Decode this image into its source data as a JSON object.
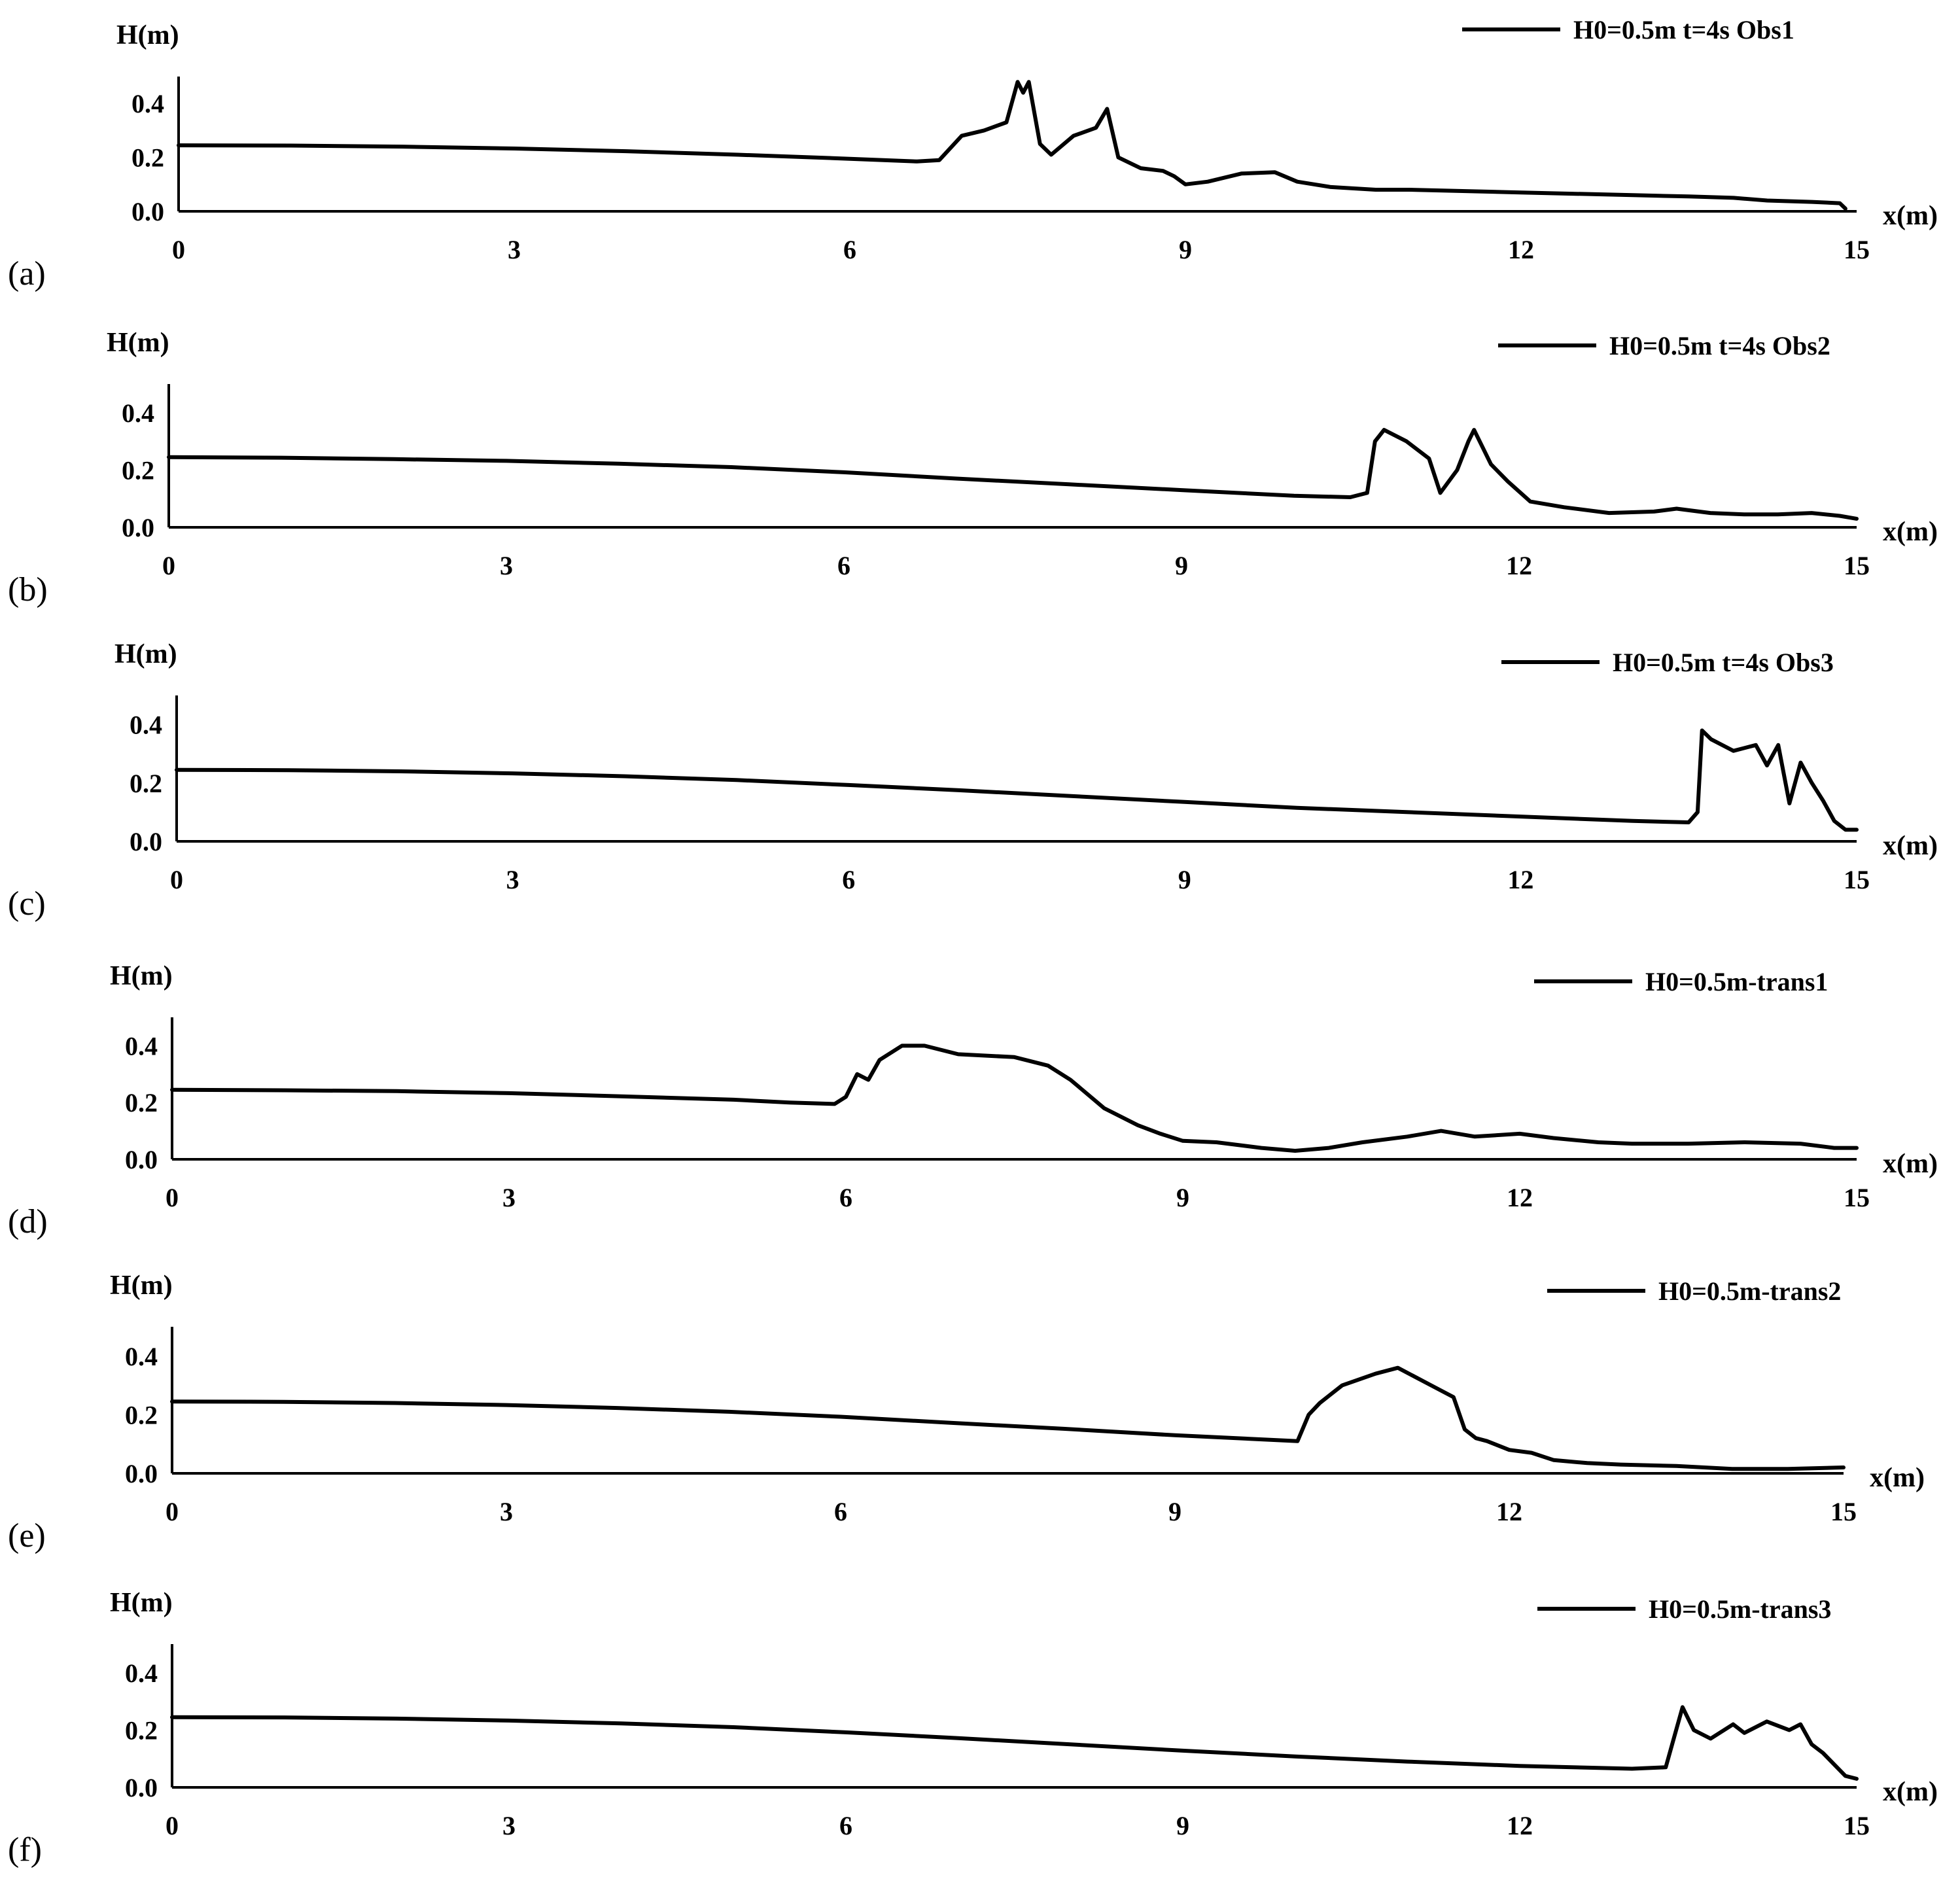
{
  "chart_data": [
    {
      "type": "line",
      "panel_label": "(a)",
      "ylabel": "H(m)",
      "xlabel": "x(m)",
      "xlim": [
        0,
        15
      ],
      "ylim": [
        0,
        0.5
      ],
      "xticks": [
        "0",
        "3",
        "6",
        "9",
        "12",
        "15"
      ],
      "yticks": [
        "0.0",
        "0.2",
        "0.4"
      ],
      "legend": "top-right",
      "series": [
        {
          "name": "H0=0.5m t=4s Obs1",
          "x": [
            0,
            1,
            2,
            3,
            4,
            5,
            6,
            6.6,
            6.8,
            7.0,
            7.2,
            7.4,
            7.5,
            7.55,
            7.6,
            7.7,
            7.8,
            8.0,
            8.2,
            8.3,
            8.4,
            8.6,
            8.8,
            8.9,
            9.0,
            9.2,
            9.5,
            9.8,
            10.0,
            10.3,
            10.7,
            11,
            12,
            13,
            13.5,
            13.9,
            14.2,
            14.6,
            14.85,
            14.9
          ],
          "y": [
            0.245,
            0.244,
            0.24,
            0.233,
            0.223,
            0.21,
            0.195,
            0.185,
            0.19,
            0.28,
            0.3,
            0.33,
            0.48,
            0.44,
            0.48,
            0.25,
            0.21,
            0.28,
            0.31,
            0.38,
            0.2,
            0.16,
            0.15,
            0.13,
            0.1,
            0.11,
            0.14,
            0.145,
            0.11,
            0.09,
            0.08,
            0.08,
            0.07,
            0.06,
            0.055,
            0.05,
            0.04,
            0.035,
            0.03,
            0.01
          ]
        }
      ]
    },
    {
      "type": "line",
      "panel_label": "(b)",
      "ylabel": "H(m)",
      "xlabel": "x(m)",
      "xlim": [
        0,
        15
      ],
      "ylim": [
        0,
        0.5
      ],
      "xticks": [
        "0",
        "3",
        "6",
        "9",
        "12",
        "15"
      ],
      "yticks": [
        "0.0",
        "0.2",
        "0.4"
      ],
      "legend": "top-right",
      "series": [
        {
          "name": "H0=0.5m t=4s Obs2",
          "x": [
            0,
            1,
            2,
            3,
            4,
            5,
            6,
            7,
            8,
            9,
            10,
            10.5,
            10.65,
            10.72,
            10.8,
            11.0,
            11.2,
            11.3,
            11.45,
            11.55,
            11.6,
            11.75,
            11.9,
            12.1,
            12.4,
            12.8,
            13.2,
            13.4,
            13.7,
            14.0,
            14.3,
            14.6,
            14.85,
            15
          ],
          "y": [
            0.245,
            0.243,
            0.238,
            0.232,
            0.222,
            0.21,
            0.192,
            0.17,
            0.15,
            0.13,
            0.11,
            0.105,
            0.12,
            0.3,
            0.34,
            0.3,
            0.24,
            0.12,
            0.2,
            0.3,
            0.34,
            0.22,
            0.16,
            0.09,
            0.07,
            0.05,
            0.055,
            0.065,
            0.05,
            0.045,
            0.045,
            0.05,
            0.04,
            0.03
          ]
        }
      ]
    },
    {
      "type": "line",
      "panel_label": "(c)",
      "ylabel": "H(m)",
      "xlabel": "x(m)",
      "xlim": [
        0,
        15
      ],
      "ylim": [
        0,
        0.5
      ],
      "xticks": [
        "0",
        "3",
        "6",
        "9",
        "12",
        "15"
      ],
      "yticks": [
        "0.0",
        "0.2",
        "0.4"
      ],
      "legend": "top-right",
      "series": [
        {
          "name": "H0=0.5m t=4s Obs3",
          "x": [
            0,
            1,
            2,
            3,
            4,
            5,
            6,
            7,
            8,
            9,
            10,
            11,
            12,
            13,
            13.5,
            13.58,
            13.62,
            13.7,
            13.9,
            14.1,
            14.2,
            14.3,
            14.4,
            14.5,
            14.6,
            14.7,
            14.8,
            14.9,
            15
          ],
          "y": [
            0.245,
            0.244,
            0.24,
            0.233,
            0.223,
            0.21,
            0.193,
            0.175,
            0.155,
            0.135,
            0.115,
            0.1,
            0.085,
            0.07,
            0.065,
            0.1,
            0.38,
            0.35,
            0.31,
            0.33,
            0.26,
            0.33,
            0.13,
            0.27,
            0.2,
            0.14,
            0.07,
            0.04,
            0.04
          ]
        }
      ]
    },
    {
      "type": "line",
      "panel_label": "(d)",
      "ylabel": "H(m)",
      "xlabel": "x(m)",
      "xlim": [
        0,
        15
      ],
      "ylim": [
        0,
        0.5
      ],
      "xticks": [
        "0",
        "3",
        "6",
        "9",
        "12",
        "15"
      ],
      "yticks": [
        "0.0",
        "0.2",
        "0.4"
      ],
      "legend": "top-right",
      "series": [
        {
          "name": "H0=0.5m-trans1",
          "x": [
            0,
            1,
            2,
            3,
            4,
            5,
            5.5,
            5.9,
            6.0,
            6.1,
            6.2,
            6.3,
            6.5,
            6.7,
            7.0,
            7.5,
            7.8,
            8.0,
            8.3,
            8.6,
            8.8,
            9.0,
            9.3,
            9.7,
            10.0,
            10.3,
            10.6,
            11.0,
            11.3,
            11.6,
            12.0,
            12.3,
            12.7,
            13.0,
            13.5,
            14.0,
            14.5,
            14.8,
            15
          ],
          "y": [
            0.245,
            0.243,
            0.24,
            0.233,
            0.222,
            0.21,
            0.2,
            0.195,
            0.22,
            0.3,
            0.28,
            0.35,
            0.4,
            0.4,
            0.37,
            0.36,
            0.33,
            0.28,
            0.18,
            0.12,
            0.09,
            0.065,
            0.06,
            0.04,
            0.03,
            0.04,
            0.06,
            0.08,
            0.1,
            0.08,
            0.09,
            0.075,
            0.06,
            0.055,
            0.055,
            0.06,
            0.055,
            0.04,
            0.04
          ]
        }
      ]
    },
    {
      "type": "line",
      "panel_label": "(e)",
      "ylabel": "H(m)",
      "xlabel": "x(m)",
      "xlim": [
        0,
        15
      ],
      "ylim": [
        0,
        0.5
      ],
      "xticks": [
        "0",
        "3",
        "6",
        "9",
        "12",
        "15"
      ],
      "yticks": [
        "0.0",
        "0.2",
        "0.4"
      ],
      "legend": "top-right",
      "series": [
        {
          "name": "H0=0.5m-trans2",
          "x": [
            0,
            1,
            2,
            3,
            4,
            5,
            6,
            7,
            8,
            9,
            10.1,
            10.2,
            10.3,
            10.5,
            10.8,
            11.0,
            11.3,
            11.5,
            11.6,
            11.7,
            11.8,
            12.0,
            12.2,
            12.4,
            12.7,
            13.0,
            13.5,
            14.0,
            14.5,
            15
          ],
          "y": [
            0.245,
            0.244,
            0.24,
            0.233,
            0.223,
            0.21,
            0.193,
            0.172,
            0.152,
            0.13,
            0.11,
            0.2,
            0.24,
            0.3,
            0.34,
            0.36,
            0.3,
            0.26,
            0.15,
            0.12,
            0.11,
            0.08,
            0.07,
            0.045,
            0.035,
            0.03,
            0.025,
            0.015,
            0.015,
            0.02
          ]
        }
      ]
    },
    {
      "type": "line",
      "panel_label": "(f)",
      "ylabel": "H(m)",
      "xlabel": "x(m)",
      "xlim": [
        0,
        15
      ],
      "ylim": [
        0,
        0.5
      ],
      "xticks": [
        "0",
        "3",
        "6",
        "9",
        "12",
        "15"
      ],
      "yticks": [
        "0.0",
        "0.2",
        "0.4"
      ],
      "legend": "top-right",
      "series": [
        {
          "name": "H0=0.5m-trans3",
          "x": [
            0,
            1,
            2,
            3,
            4,
            5,
            6,
            7,
            8,
            9,
            10,
            11,
            12,
            13,
            13.3,
            13.45,
            13.55,
            13.7,
            13.9,
            14.0,
            14.2,
            14.4,
            14.5,
            14.6,
            14.7,
            14.8,
            14.9,
            15
          ],
          "y": [
            0.245,
            0.244,
            0.24,
            0.233,
            0.223,
            0.21,
            0.192,
            0.172,
            0.15,
            0.128,
            0.108,
            0.09,
            0.075,
            0.065,
            0.07,
            0.28,
            0.2,
            0.17,
            0.22,
            0.19,
            0.23,
            0.2,
            0.22,
            0.15,
            0.12,
            0.08,
            0.04,
            0.03
          ]
        }
      ]
    }
  ]
}
